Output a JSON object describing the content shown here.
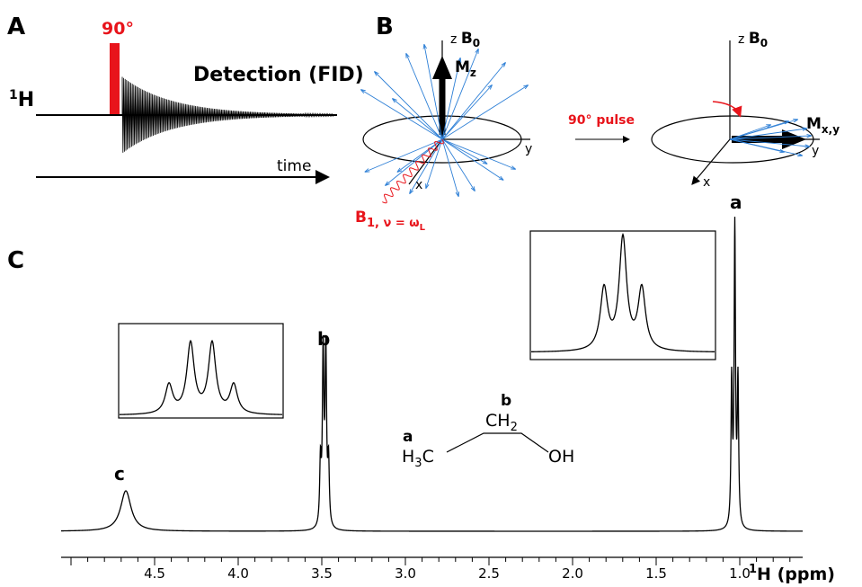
{
  "panel_a": {
    "label": "A",
    "pulse": "90°",
    "nucleus_mass": "1",
    "nucleus_symbol": "H",
    "detection": "Detection (FID)",
    "time": "time"
  },
  "panel_b": {
    "label": "B",
    "left": {
      "z": "z",
      "b0": "B",
      "b0_sub": "0",
      "m": "M",
      "m_sub": "z",
      "x": "x",
      "y": "y",
      "b1": "B",
      "b1_sub": "1, ν = ω",
      "b1_subsub": "L"
    },
    "pulse": "90° pulse",
    "right": {
      "z": "z",
      "b0": "B",
      "b0_sub": "0",
      "m": "M",
      "m_sub": "x,y",
      "x": "x",
      "y": "y"
    }
  },
  "panel_c": {
    "label": "C",
    "peaks": [
      "c",
      "b",
      "a"
    ],
    "molecule": {
      "a": "a",
      "b": "b",
      "h3c": "H",
      "h3c_sub": "3",
      "h3c_c": "C",
      "ch2": "CH",
      "ch2_sub": "2",
      "oh": "OH"
    },
    "ticks": [
      "4.5",
      "4.0",
      "3.5",
      "3.0",
      "2.5",
      "2.0",
      "1.5",
      "1.0"
    ],
    "axis_mass": "1",
    "axis_label": "H (ppm)"
  }
}
